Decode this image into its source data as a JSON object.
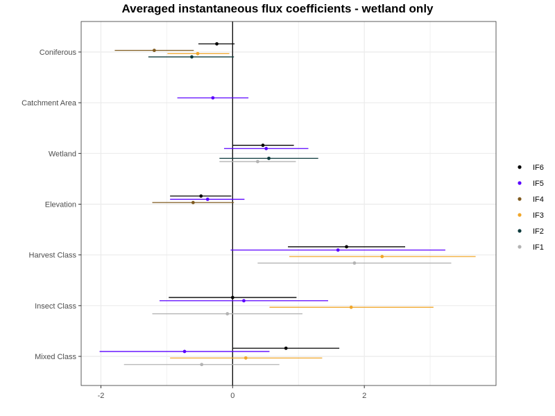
{
  "chart_data": {
    "type": "scatter",
    "title": "Averaged instantaneous flux coefficients - wetland only",
    "xlabel": "",
    "ylabel": "",
    "xlim": [
      -2.3,
      4.0
    ],
    "x_ticks": [
      -2,
      0,
      2
    ],
    "x_tick_labels": [
      "-2",
      "0",
      "2"
    ],
    "categories": [
      "Coniferous",
      "Catchment Area",
      "Wetland",
      "Elevation",
      "Harvest Class",
      "Insect Class",
      "Mixed Class"
    ],
    "grid": true,
    "legend_position": "right",
    "reference_line_x": 0,
    "series": [
      {
        "name": "IF6",
        "color": "#000000",
        "points": [
          {
            "category": "Coniferous",
            "estimate": -0.24,
            "lower": -0.52,
            "upper": 0.03
          },
          {
            "category": "Wetland",
            "estimate": 0.46,
            "lower": 0.0,
            "upper": 0.93
          },
          {
            "category": "Elevation",
            "estimate": -0.48,
            "lower": -0.95,
            "upper": -0.02
          },
          {
            "category": "Harvest Class",
            "estimate": 1.73,
            "lower": 0.84,
            "upper": 2.62
          },
          {
            "category": "Insect Class",
            "estimate": 0.0,
            "lower": -0.97,
            "upper": 0.97
          },
          {
            "category": "Mixed Class",
            "estimate": 0.81,
            "lower": 0.0,
            "upper": 1.62
          }
        ]
      },
      {
        "name": "IF5",
        "color": "#5a00ff",
        "points": [
          {
            "category": "Catchment Area",
            "estimate": -0.3,
            "lower": -0.84,
            "upper": 0.24
          },
          {
            "category": "Wetland",
            "estimate": 0.51,
            "lower": -0.13,
            "upper": 1.15
          },
          {
            "category": "Elevation",
            "estimate": -0.38,
            "lower": -0.95,
            "upper": 0.18
          },
          {
            "category": "Harvest Class",
            "estimate": 1.6,
            "lower": -0.03,
            "upper": 3.23
          },
          {
            "category": "Insect Class",
            "estimate": 0.17,
            "lower": -1.11,
            "upper": 1.45
          },
          {
            "category": "Mixed Class",
            "estimate": -0.73,
            "lower": -2.02,
            "upper": 0.56
          }
        ]
      },
      {
        "name": "IF4",
        "color": "#7f5a1f",
        "points": [
          {
            "category": "Coniferous",
            "estimate": -1.19,
            "lower": -1.79,
            "upper": -0.59
          },
          {
            "category": "Elevation",
            "estimate": -0.6,
            "lower": -1.22,
            "upper": 0.02
          }
        ]
      },
      {
        "name": "IF3",
        "color": "#f0a629",
        "points": [
          {
            "category": "Coniferous",
            "estimate": -0.53,
            "lower": -0.99,
            "upper": -0.05
          },
          {
            "category": "Harvest Class",
            "estimate": 2.27,
            "lower": 0.86,
            "upper": 3.69
          },
          {
            "category": "Insect Class",
            "estimate": 1.8,
            "lower": 0.56,
            "upper": 3.05
          },
          {
            "category": "Mixed Class",
            "estimate": 0.2,
            "lower": -0.95,
            "upper": 1.36
          }
        ]
      },
      {
        "name": "IF2",
        "color": "#0d3a3c",
        "points": [
          {
            "category": "Coniferous",
            "estimate": -0.62,
            "lower": -1.28,
            "upper": 0.02
          },
          {
            "category": "Wetland",
            "estimate": 0.55,
            "lower": -0.2,
            "upper": 1.3
          }
        ]
      },
      {
        "name": "IF1",
        "color": "#b3b3b3",
        "points": [
          {
            "category": "Wetland",
            "estimate": 0.38,
            "lower": -0.2,
            "upper": 0.96
          },
          {
            "category": "Harvest Class",
            "estimate": 1.85,
            "lower": 0.38,
            "upper": 3.32
          },
          {
            "category": "Insect Class",
            "estimate": -0.08,
            "lower": -1.22,
            "upper": 1.06
          },
          {
            "category": "Mixed Class",
            "estimate": -0.47,
            "lower": -1.65,
            "upper": 0.71
          }
        ]
      }
    ]
  }
}
